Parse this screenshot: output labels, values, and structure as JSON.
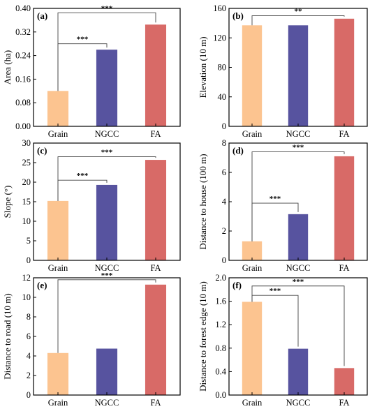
{
  "colors": {
    "Grain": "#fcc490",
    "NGCC": "#57539f",
    "FA": "#d86a67",
    "axis": "#000000",
    "bracket": "#444444"
  },
  "chart_data": [
    {
      "type": "bar",
      "panel": "(a)",
      "categories": [
        "Grain",
        "NGCC",
        "FA"
      ],
      "values": [
        0.12,
        0.26,
        0.345
      ],
      "ylabel": "Area (ha)",
      "ylim": [
        0,
        0.4
      ],
      "yticks": [
        "0.00",
        "0.08",
        "0.16",
        "0.24",
        "0.32",
        "0.40"
      ],
      "significance": [
        {
          "from": 0,
          "to": 2,
          "label": "***",
          "y": 0.385
        },
        {
          "from": 0,
          "to": 1,
          "label": "***",
          "y": 0.28
        }
      ]
    },
    {
      "type": "bar",
      "panel": "(b)",
      "categories": [
        "Grain",
        "NGCC",
        "FA"
      ],
      "values": [
        137,
        137,
        146
      ],
      "ylabel": "Elevation (10 m)",
      "ylim": [
        0,
        160
      ],
      "yticks": [
        "0",
        "40",
        "80",
        "120",
        "160"
      ],
      "significance": [
        {
          "from": 0,
          "to": 2,
          "label": "**",
          "y": 150
        }
      ]
    },
    {
      "type": "bar",
      "panel": "(c)",
      "categories": [
        "Grain",
        "NGCC",
        "FA"
      ],
      "values": [
        15.2,
        19.3,
        25.7
      ],
      "ylabel": "Slope (°)",
      "ylim": [
        0,
        30
      ],
      "yticks": [
        "0",
        "5",
        "10",
        "15",
        "20",
        "25",
        "30"
      ],
      "significance": [
        {
          "from": 0,
          "to": 2,
          "label": "***",
          "y": 26.5
        },
        {
          "from": 0,
          "to": 1,
          "label": "***",
          "y": 20.5
        }
      ]
    },
    {
      "type": "bar",
      "panel": "(d)",
      "categories": [
        "Grain",
        "NGCC",
        "FA"
      ],
      "values": [
        1.3,
        3.15,
        7.1
      ],
      "ylabel": "Distance to house (100 m)",
      "ylim": [
        0,
        8
      ],
      "yticks": [
        "0",
        "2",
        "4",
        "6",
        "8"
      ],
      "significance": [
        {
          "from": 0,
          "to": 2,
          "label": "***",
          "y": 7.4
        },
        {
          "from": 0,
          "to": 1,
          "label": "***",
          "y": 3.9
        }
      ]
    },
    {
      "type": "bar",
      "panel": "(e)",
      "categories": [
        "Grain",
        "NGCC",
        "FA"
      ],
      "values": [
        4.3,
        4.75,
        11.3
      ],
      "ylabel": "Distance to road (10 m)",
      "ylim": [
        0,
        12
      ],
      "yticks": [
        "0",
        "2",
        "4",
        "6",
        "8",
        "10",
        "12"
      ],
      "significance": [
        {
          "from": 0,
          "to": 2,
          "label": "***",
          "y": 11.8
        }
      ]
    },
    {
      "type": "bar",
      "panel": "(f)",
      "categories": [
        "Grain",
        "NGCC",
        "FA"
      ],
      "values": [
        1.59,
        0.79,
        0.46
      ],
      "ylabel": "Distance to forest edge (10 m)",
      "ylim": [
        0,
        2.0
      ],
      "yticks": [
        "0.0",
        "0.4",
        "0.8",
        "1.2",
        "1.6",
        "2.0"
      ],
      "significance": [
        {
          "from": 0,
          "to": 2,
          "label": "***",
          "y": 1.86
        },
        {
          "from": 0,
          "to": 1,
          "label": "***",
          "y": 1.7
        }
      ]
    }
  ]
}
